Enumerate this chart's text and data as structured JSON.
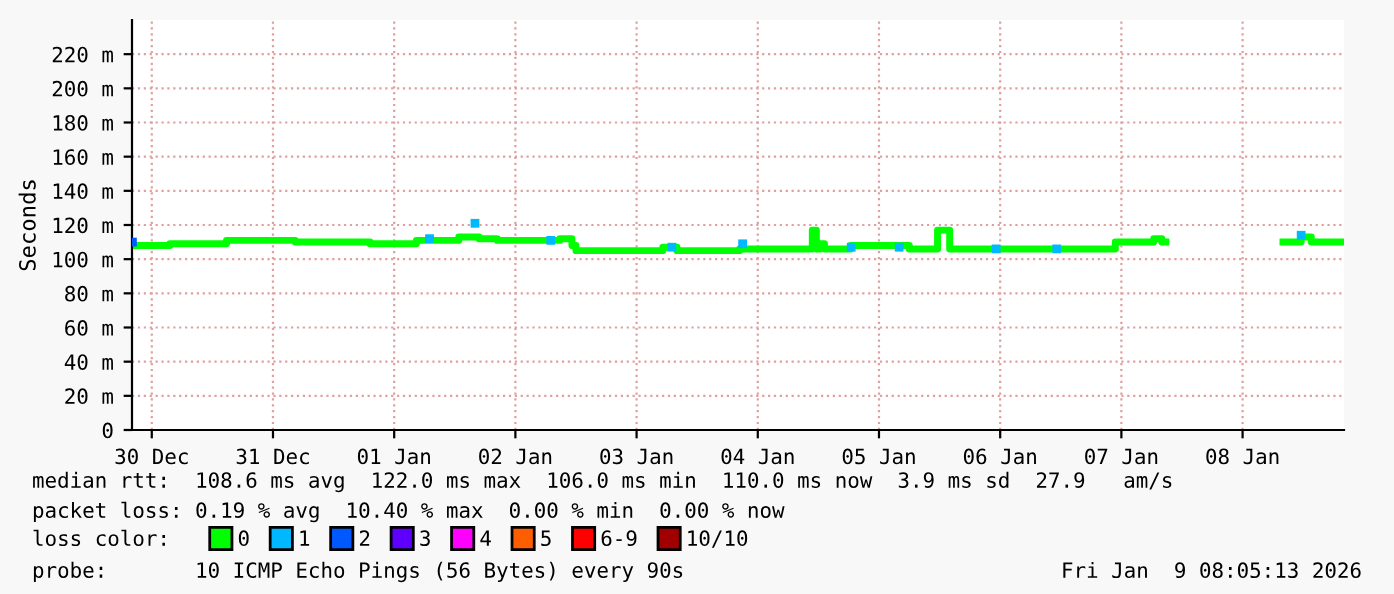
{
  "chart_data": {
    "type": "step",
    "ylabel": "Seconds",
    "x": [
      "2025-12-30T08:24",
      "2025-12-30T15:36",
      "2025-12-31T02:48",
      "2025-12-31T16:24",
      "2026-01-01T07:12",
      "2026-01-01T16:24",
      "2026-01-02T00:48",
      "2026-01-02T04:48",
      "2026-01-02T08:24",
      "2026-01-02T20:48",
      "2026-01-02T23:12",
      "2026-01-03T00:00",
      "2026-01-03T17:12",
      "2026-01-03T20:00",
      "2026-01-04T08:24",
      "2026-01-04T10:24",
      "2026-01-04T22:48",
      "2026-01-04T23:36",
      "2026-01-05T00:24",
      "2026-01-05T01:12",
      "2026-01-05T02:00",
      "2026-01-05T05:36",
      "2026-01-05T06:24",
      "2026-01-05T18:00",
      "2026-01-05T23:36",
      "2026-01-06T00:48",
      "2026-01-06T02:00",
      "2026-01-07T10:48",
      "2026-01-07T18:24",
      "2026-01-07T20:00",
      "2026-01-07T20:48",
      "2026-01-08T20:00",
      "2026-01-08T23:36",
      "2026-01-09T01:36",
      "2026-01-09T08:00"
    ],
    "series": [
      {
        "name": "0",
        "color": "#00ff00",
        "values": [
          108,
          109,
          111,
          110,
          109,
          111,
          113,
          112,
          111,
          112,
          108,
          105,
          107,
          105,
          106,
          106,
          117,
          106,
          109,
          106,
          106,
          106,
          108,
          106,
          117,
          117,
          106,
          110,
          112,
          110,
          null,
          110,
          113,
          110,
          110
        ]
      },
      {
        "name": "1",
        "color": "#00b8ff",
        "type": "scatter",
        "marker": "square",
        "x": [
          "2026-01-01T19:00",
          "2026-01-02T04:00",
          "2026-01-02T19:00",
          "2026-01-03T19:00",
          "2026-01-04T09:00",
          "2026-01-05T06:30",
          "2026-01-05T16:00",
          "2026-01-06T11:12",
          "2026-01-06T23:12",
          "2026-01-08T23:36"
        ],
        "values": [
          112,
          121,
          111,
          107,
          109,
          107,
          107,
          106,
          106,
          114
        ]
      },
      {
        "name": "2",
        "color": "#0059ff",
        "type": "scatter",
        "marker": "square",
        "x": [
          "2025-12-30T08:10"
        ],
        "values": [
          110
        ]
      },
      {
        "name": "3",
        "color": "#5e00ff",
        "type": "scatter",
        "marker": "square",
        "values": [
          null,
          null,
          null,
          null,
          null,
          null,
          null,
          null,
          null,
          null,
          null,
          null,
          null,
          null,
          null,
          null,
          null,
          null,
          null,
          null,
          null,
          null,
          null,
          null,
          null,
          null,
          null,
          null,
          null,
          null,
          null,
          null,
          null,
          null,
          null
        ]
      },
      {
        "name": "4",
        "color": "#ff00ff",
        "type": "scatter",
        "marker": "square",
        "values": [
          null,
          null,
          null,
          null,
          null,
          null,
          null,
          null,
          null,
          null,
          null,
          null,
          null,
          null,
          null,
          null,
          null,
          null,
          null,
          null,
          null,
          null,
          null,
          null,
          null,
          null,
          null,
          null,
          null,
          null,
          null,
          null,
          null,
          null,
          null
        ]
      },
      {
        "name": "5",
        "color": "#ff5e00",
        "type": "scatter",
        "marker": "square",
        "values": [
          null,
          null,
          null,
          null,
          null,
          null,
          null,
          null,
          null,
          null,
          null,
          null,
          null,
          null,
          null,
          null,
          null,
          null,
          null,
          null,
          null,
          null,
          null,
          null,
          null,
          null,
          null,
          null,
          null,
          null,
          null,
          null,
          null,
          null,
          null
        ]
      },
      {
        "name": "6-9",
        "color": "#ff0000",
        "type": "scatter",
        "marker": "square",
        "values": [
          null,
          null,
          null,
          null,
          null,
          null,
          null,
          null,
          null,
          null,
          null,
          null,
          null,
          null,
          null,
          null,
          null,
          null,
          null,
          null,
          null,
          null,
          null,
          null,
          null,
          null,
          null,
          null,
          null,
          null,
          null,
          null,
          null,
          null,
          null
        ]
      },
      {
        "name": "10/10",
        "color": "#a10000",
        "type": "scatter",
        "marker": "square",
        "values": [
          null,
          null,
          null,
          null,
          null,
          null,
          null,
          null,
          null,
          null,
          null,
          null,
          null,
          null,
          null,
          null,
          null,
          null,
          null,
          null,
          null,
          null,
          null,
          null,
          null,
          null,
          null,
          null,
          null,
          null,
          null,
          null,
          null,
          null,
          null
        ]
      }
    ],
    "legend_title": "loss color:",
    "legend": "bottom",
    "grid": true,
    "xlim": [
      "2025-12-30T08:05",
      "2026-01-09T08:05"
    ],
    "xticks": [
      {
        "value": "2025-12-30T12:00",
        "label": "30 Dec"
      },
      {
        "value": "2025-12-31T12:00",
        "label": "31 Dec"
      },
      {
        "value": "2026-01-01T12:00",
        "label": "01 Jan"
      },
      {
        "value": "2026-01-02T12:00",
        "label": "02 Jan"
      },
      {
        "value": "2026-01-03T12:00",
        "label": "03 Jan"
      },
      {
        "value": "2026-01-04T12:00",
        "label": "04 Jan"
      },
      {
        "value": "2026-01-05T12:00",
        "label": "05 Jan"
      },
      {
        "value": "2026-01-06T12:00",
        "label": "06 Jan"
      },
      {
        "value": "2026-01-07T12:00",
        "label": "07 Jan"
      },
      {
        "value": "2026-01-08T12:00",
        "label": "08 Jan"
      }
    ],
    "ylim": [
      0,
      240
    ],
    "yticks": [
      0,
      {
        "value": 20,
        "label": "20 m"
      },
      {
        "value": 40,
        "label": "40 m"
      },
      {
        "value": 60,
        "label": "60 m"
      },
      {
        "value": 80,
        "label": "80 m"
      },
      {
        "value": 100,
        "label": "100 m"
      },
      {
        "value": 120,
        "label": "120 m"
      },
      {
        "value": 140,
        "label": "140 m"
      },
      {
        "value": 160,
        "label": "160 m"
      },
      {
        "value": 180,
        "label": "180 m"
      },
      {
        "value": 200,
        "label": "200 m"
      },
      {
        "value": 220,
        "label": "220 m"
      }
    ],
    "annotations": [
      "median rtt:  108.6 ms avg  122.0 ms max  106.0 ms min  110.0 ms now  3.9 ms sd  27.9   am/s",
      "packet loss: 0.19 % avg  10.40 % max  0.00 % min  0.00 % now",
      "probe:       10 ICMP Echo Pings (56 Bytes) every 90s",
      "Fri Jan  9 08:05:13 2026"
    ]
  }
}
